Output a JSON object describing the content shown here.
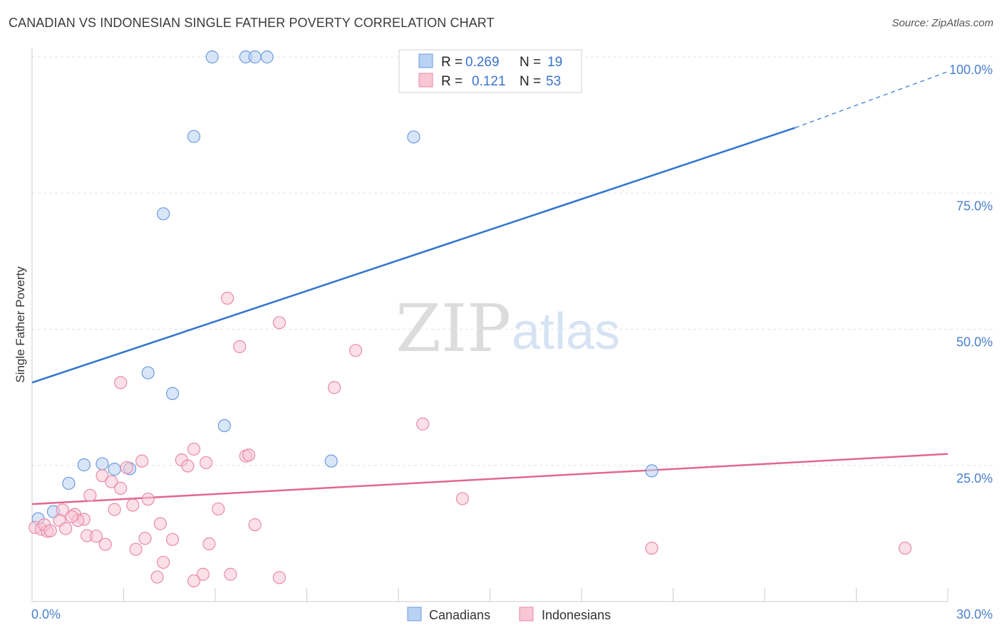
{
  "header": {
    "title": "CANADIAN VS INDONESIAN SINGLE FATHER POVERTY CORRELATION CHART",
    "source": "Source: ZipAtlas.com"
  },
  "watermark": {
    "zip": "ZIP",
    "atlas": "atlas"
  },
  "legend_box": {
    "rows": [
      {
        "r_label": "R =",
        "r_value": "0.269",
        "n_label": "N =",
        "n_value": "19",
        "color": "#b8d2f3",
        "stroke": "#6d9be0"
      },
      {
        "r_label": "R =",
        "r_value": "0.121",
        "n_label": "N =",
        "n_value": "53",
        "color": "#f8c6d5",
        "stroke": "#e88aa8"
      }
    ]
  },
  "bottom_legend": [
    {
      "label": "Canadians",
      "color": "#b8d2f3",
      "stroke": "#6d9be0"
    },
    {
      "label": "Indonesians",
      "color": "#f8c6d5",
      "stroke": "#e88aa8"
    }
  ],
  "chart_data": {
    "type": "scatter",
    "title": "CANADIAN VS INDONESIAN SINGLE FATHER POVERTY CORRELATION CHART",
    "xlabel": "",
    "ylabel": "Single Father Poverty",
    "xlim": [
      0,
      30
    ],
    "ylim": [
      0,
      100
    ],
    "x_tick_labels": [
      "0.0%",
      "30.0%"
    ],
    "y_ticks": [
      25,
      50,
      75,
      100
    ],
    "y_tick_labels": [
      "25.0%",
      "50.0%",
      "75.0%",
      "100.0%"
    ],
    "grid": true,
    "series": [
      {
        "name": "Canadians",
        "color": "#b8d2f3",
        "stroke": "#6d9be0",
        "line_color": "#2f74d0",
        "trend": {
          "x0": 0,
          "y0": 40.2,
          "x1": 25,
          "y1": 87.0,
          "x_end": 30,
          "y_end": 97.3
        },
        "points": [
          [
            5.9,
            100
          ],
          [
            7.0,
            100
          ],
          [
            7.3,
            100
          ],
          [
            7.7,
            100
          ],
          [
            5.3,
            85.4
          ],
          [
            12.5,
            85.3
          ],
          [
            4.3,
            71.2
          ],
          [
            3.8,
            42.0
          ],
          [
            4.6,
            38.2
          ],
          [
            6.3,
            32.3
          ],
          [
            1.7,
            25.1
          ],
          [
            2.3,
            25.3
          ],
          [
            2.7,
            24.3
          ],
          [
            3.2,
            24.4
          ],
          [
            9.8,
            25.8
          ],
          [
            20.3,
            24.0
          ],
          [
            1.2,
            21.7
          ],
          [
            0.7,
            16.5
          ],
          [
            0.2,
            15.2
          ]
        ]
      },
      {
        "name": "Indonesians",
        "color": "#f8c6d5",
        "stroke": "#e88aa8",
        "line_color": "#e06890",
        "trend": {
          "x0": 0,
          "y0": 17.9,
          "x1": 30,
          "y1": 27.1
        },
        "points": [
          [
            6.4,
            55.7
          ],
          [
            8.1,
            51.2
          ],
          [
            6.8,
            46.8
          ],
          [
            10.6,
            46.1
          ],
          [
            2.9,
            40.2
          ],
          [
            9.9,
            39.3
          ],
          [
            12.8,
            32.6
          ],
          [
            5.3,
            28.0
          ],
          [
            7.0,
            26.7
          ],
          [
            7.1,
            26.9
          ],
          [
            3.6,
            25.8
          ],
          [
            4.9,
            26.0
          ],
          [
            5.7,
            25.5
          ],
          [
            5.1,
            24.9
          ],
          [
            3.1,
            24.6
          ],
          [
            2.3,
            23.1
          ],
          [
            2.6,
            22.0
          ],
          [
            2.9,
            20.8
          ],
          [
            1.9,
            19.5
          ],
          [
            3.8,
            18.8
          ],
          [
            3.3,
            17.7
          ],
          [
            6.1,
            17.0
          ],
          [
            2.7,
            16.9
          ],
          [
            1.0,
            16.8
          ],
          [
            1.4,
            16.0
          ],
          [
            1.7,
            15.1
          ],
          [
            0.9,
            14.9
          ],
          [
            1.5,
            14.9
          ],
          [
            4.2,
            14.3
          ],
          [
            7.3,
            14.1
          ],
          [
            0.1,
            13.6
          ],
          [
            0.3,
            13.3
          ],
          [
            0.5,
            12.9
          ],
          [
            1.1,
            13.4
          ],
          [
            1.8,
            12.1
          ],
          [
            2.1,
            12.0
          ],
          [
            3.7,
            11.6
          ],
          [
            4.6,
            11.4
          ],
          [
            2.4,
            10.5
          ],
          [
            5.8,
            10.6
          ],
          [
            3.4,
            9.6
          ],
          [
            4.3,
            7.2
          ],
          [
            5.6,
            5.0
          ],
          [
            6.5,
            5.0
          ],
          [
            8.1,
            4.4
          ],
          [
            4.1,
            4.5
          ],
          [
            5.3,
            3.8
          ],
          [
            14.1,
            18.9
          ],
          [
            20.3,
            9.8
          ],
          [
            28.6,
            9.8
          ],
          [
            0.4,
            14.1
          ],
          [
            0.6,
            13.0
          ],
          [
            1.3,
            15.6
          ]
        ]
      }
    ]
  }
}
